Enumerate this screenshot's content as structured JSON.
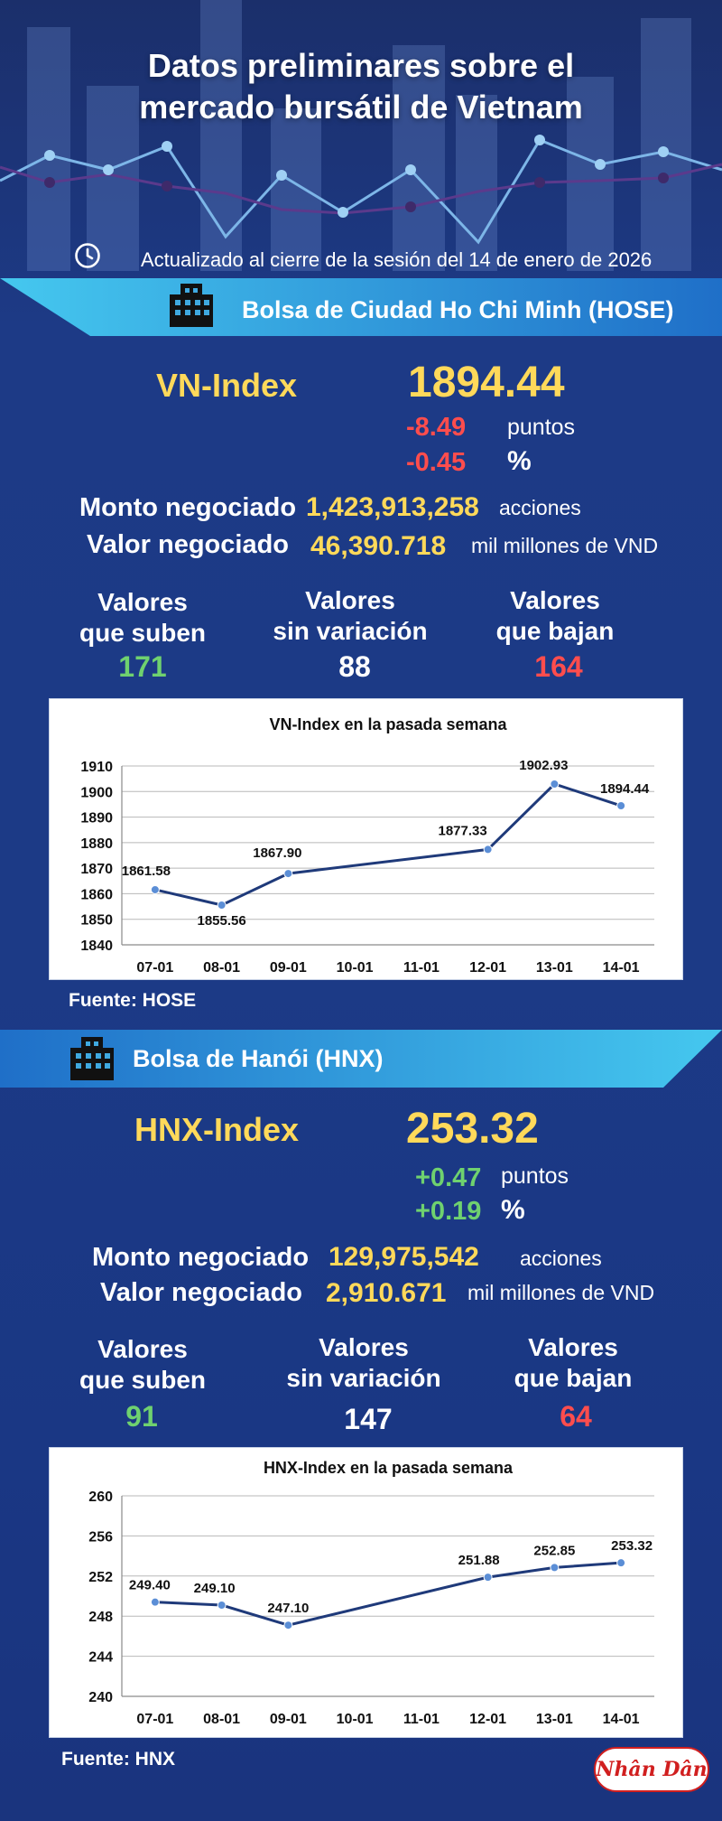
{
  "header": {
    "title_line1": "Datos preliminares sobre el",
    "title_line2": "mercado bursátil de Vietnam",
    "updated": "Actualizado al cierre de la sesión del 14 de enero de 2026",
    "clock_icon": "clock-icon"
  },
  "hose": {
    "exchange": "Bolsa de Ciudad Ho Chi Minh (HOSE)",
    "index_name": "VN-Index",
    "index_value": "1894.44",
    "change_points": "-8.49",
    "change_points_unit": "puntos",
    "change_percent": "-0.45",
    "change_percent_unit": "%",
    "volume_label": "Monto negociado",
    "volume_value": "1,423,913,258",
    "volume_unit": "acciones",
    "turnover_label": "Valor negociado",
    "turnover_value": "46,390.718",
    "turnover_unit": "mil millones de VND",
    "advancers_label_1": "Valores",
    "advancers_label_2": "que suben",
    "advancers": "171",
    "unchanged_label_1": "Valores",
    "unchanged_label_2": "sin variación",
    "unchanged": "88",
    "decliners_label_1": "Valores",
    "decliners_label_2": "que bajan",
    "decliners": "164",
    "source": "Fuente: HOSE",
    "colors": {
      "negative": "#ff4d4d",
      "positive": "#6fd16f",
      "highlight": "#ffd95a"
    }
  },
  "hnx": {
    "exchange": "Bolsa de Hanói (HNX)",
    "index_name": "HNX-Index",
    "index_value": "253.32",
    "change_points": "+0.47",
    "change_points_unit": "puntos",
    "change_percent": "+0.19",
    "change_percent_unit": "%",
    "volume_label": "Monto negociado",
    "volume_value": "129,975,542",
    "volume_unit": "acciones",
    "turnover_label": "Valor negociado",
    "turnover_value": "2,910.671",
    "turnover_unit": "mil millones de VND",
    "advancers_label_1": "Valores",
    "advancers_label_2": "que suben",
    "advancers": "91",
    "unchanged_label_1": "Valores",
    "unchanged_label_2": "sin variación",
    "unchanged": "147",
    "decliners_label_1": "Valores",
    "decliners_label_2": "que bajan",
    "decliners": "64",
    "source": "Fuente:  HNX"
  },
  "logo": {
    "text": "Nhân Dân"
  },
  "chart_data": [
    {
      "type": "line",
      "title": "VN-Index en la pasada semana",
      "xlabel": "",
      "ylabel": "",
      "categories": [
        "07-01",
        "08-01",
        "09-01",
        "10-01",
        "11-01",
        "12-01",
        "13-01",
        "14-01"
      ],
      "series": [
        {
          "points": [
            [
              "07-01",
              1861.58
            ],
            [
              "08-01",
              1855.56
            ],
            [
              "09-01",
              1867.9
            ],
            [
              "12-01",
              1877.33
            ],
            [
              "13-01",
              1902.93
            ],
            [
              "14-01",
              1894.44
            ]
          ]
        }
      ],
      "labels": [
        "1861.58",
        "1855.56",
        "1867.90",
        "1877.33",
        "1902.93",
        "1894.44"
      ],
      "yticks": [
        1840,
        1850,
        1860,
        1870,
        1880,
        1890,
        1900,
        1910
      ],
      "ylim": [
        1840,
        1910
      ],
      "grid": true,
      "line_color": "#1f3a7a",
      "marker_color": "#5b8ed6"
    },
    {
      "type": "line",
      "title": "HNX-Index en la pasada semana",
      "xlabel": "",
      "ylabel": "",
      "categories": [
        "07-01",
        "08-01",
        "09-01",
        "10-01",
        "11-01",
        "12-01",
        "13-01",
        "14-01"
      ],
      "series": [
        {
          "points": [
            [
              "07-01",
              249.4
            ],
            [
              "08-01",
              249.1
            ],
            [
              "09-01",
              247.1
            ],
            [
              "12-01",
              251.88
            ],
            [
              "13-01",
              252.85
            ],
            [
              "14-01",
              253.32
            ]
          ]
        }
      ],
      "labels": [
        "249.40",
        "249.10",
        "247.10",
        "251.88",
        "252.85",
        "253.32"
      ],
      "yticks": [
        240,
        244,
        248,
        252,
        256,
        260
      ],
      "ylim": [
        240,
        260
      ],
      "grid": true,
      "line_color": "#1f3a7a",
      "marker_color": "#5b8ed6"
    }
  ]
}
